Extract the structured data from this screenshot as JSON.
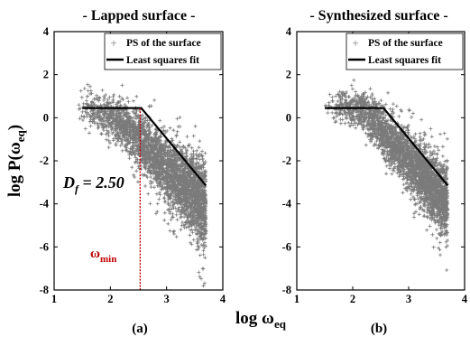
{
  "figure": {
    "xlabel_main": "log ω",
    "xlabel_sub": "eq",
    "ylabel_main": "log P(ω",
    "ylabel_sub": "eq",
    "ylabel_close": ")"
  },
  "chart_data": [
    {
      "type": "scatter",
      "panel_label": "(a)",
      "title": "- Lapped surface -",
      "xlim": [
        1,
        4
      ],
      "ylim": [
        -8,
        4
      ],
      "xticks": [
        "1",
        "2",
        "3",
        "4"
      ],
      "yticks": [
        "4",
        "2",
        "0",
        "-2",
        "-4",
        "-6",
        "-8"
      ],
      "legend": {
        "position": "top-right",
        "entries": [
          "PS of the surface",
          "Least squares fit"
        ]
      },
      "series": [
        {
          "name": "PS of the surface",
          "color": "#7a7a7a",
          "marker": "plus",
          "description_points": {
            "x_range": [
              1.4,
              3.7
            ],
            "upper_envelope": [
              [
                1.4,
                2.0
              ],
              [
                1.8,
                1.5
              ],
              [
                2.2,
                1.2
              ],
              [
                2.5,
                0.8
              ],
              [
                3.0,
                -0.2
              ],
              [
                3.4,
                -0.8
              ],
              [
                3.7,
                -1.3
              ]
            ],
            "lower_envelope": [
              [
                1.4,
                -0.6
              ],
              [
                1.8,
                -1.1
              ],
              [
                2.2,
                -1.8
              ],
              [
                2.5,
                -2.8
              ],
              [
                3.0,
                -4.5
              ],
              [
                3.4,
                -6.0
              ],
              [
                3.7,
                -7.2
              ]
            ]
          }
        },
        {
          "name": "Least squares fit",
          "color": "#000000",
          "line": [
            [
              1.5,
              0.45
            ],
            [
              2.55,
              0.45
            ],
            [
              3.7,
              -3.15
            ]
          ]
        }
      ],
      "annotations": {
        "df_main": "D",
        "df_sub": "f",
        "df_value": " = 2.50",
        "omega_main": "ω",
        "omega_sub": "min",
        "omega_x": 2.53,
        "omega_color": "#c00000"
      }
    },
    {
      "type": "scatter",
      "panel_label": "(b)",
      "title": "- Synthesized surface -",
      "xlim": [
        1,
        4
      ],
      "ylim": [
        -8,
        4
      ],
      "xticks": [
        "1",
        "2",
        "3",
        "4"
      ],
      "yticks": [
        "4",
        "2",
        "0",
        "-2",
        "-4",
        "-6",
        "-8"
      ],
      "legend": {
        "position": "top-right",
        "entries": [
          "PS of the surface",
          "Least squares fit"
        ]
      },
      "series": [
        {
          "name": "PS of the surface",
          "color": "#7a7a7a",
          "marker": "plus",
          "description_points": {
            "x_range": [
              1.5,
              3.7
            ],
            "upper_envelope": [
              [
                1.5,
                1.3
              ],
              [
                1.9,
                1.6
              ],
              [
                2.2,
                1.6
              ],
              [
                2.5,
                1.1
              ],
              [
                3.0,
                -0.1
              ],
              [
                3.4,
                -1.0
              ],
              [
                3.7,
                -1.4
              ]
            ],
            "lower_envelope": [
              [
                1.5,
                -0.1
              ],
              [
                1.9,
                -0.6
              ],
              [
                2.2,
                -0.9
              ],
              [
                2.5,
                -2.2
              ],
              [
                3.0,
                -3.8
              ],
              [
                3.4,
                -5.3
              ],
              [
                3.7,
                -6.5
              ]
            ]
          }
        },
        {
          "name": "Least squares fit",
          "color": "#000000",
          "line": [
            [
              1.5,
              0.45
            ],
            [
              2.55,
              0.45
            ],
            [
              3.7,
              -3.15
            ]
          ]
        }
      ]
    }
  ]
}
